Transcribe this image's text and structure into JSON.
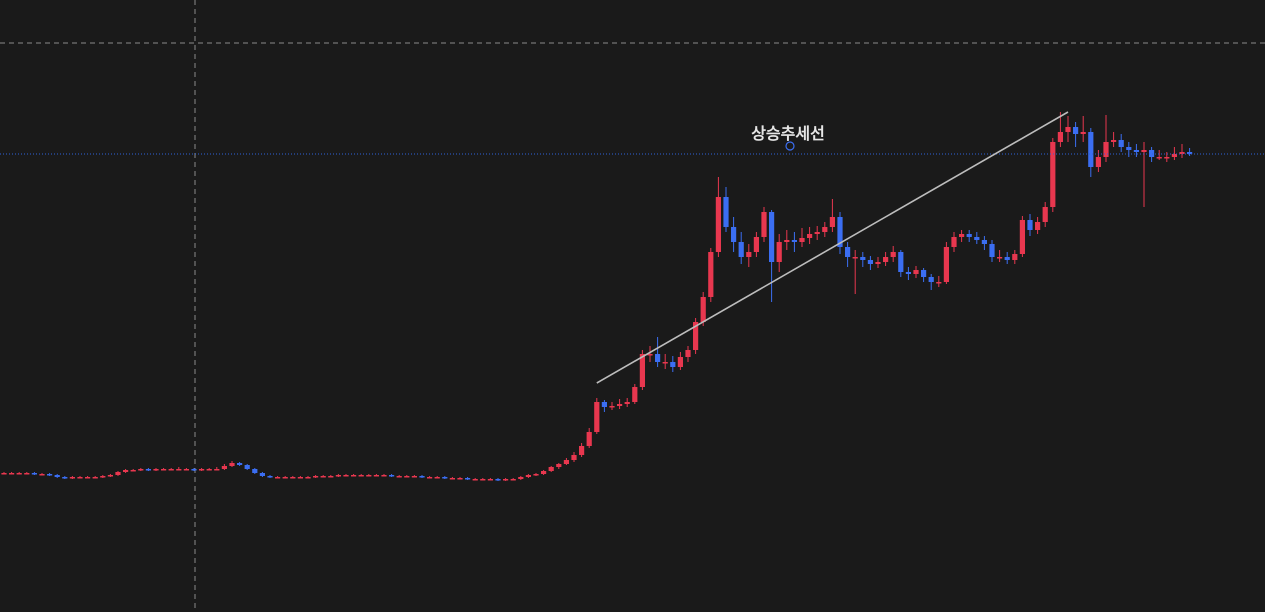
{
  "chart_data": {
    "type": "candlestick",
    "up_color": "#e8374f",
    "down_color": "#3b6ef2",
    "ylim": [
      0,
      612
    ],
    "ohlc": [
      [
        139,
        140,
        138,
        139
      ],
      [
        139,
        140,
        138,
        139
      ],
      [
        139,
        140,
        138,
        139
      ],
      [
        139,
        140,
        138,
        139
      ],
      [
        139,
        140,
        137,
        138
      ],
      [
        138,
        139,
        137,
        138
      ],
      [
        138,
        139,
        136,
        137
      ],
      [
        137,
        138,
        134,
        135
      ],
      [
        135,
        136,
        133,
        134
      ],
      [
        134,
        136,
        133,
        135
      ],
      [
        135,
        136,
        134,
        135
      ],
      [
        135,
        136,
        134,
        135
      ],
      [
        135,
        136,
        134,
        135
      ],
      [
        135,
        137,
        134,
        136
      ],
      [
        136,
        138,
        135,
        137
      ],
      [
        137,
        141,
        136,
        140
      ],
      [
        140,
        143,
        139,
        142
      ],
      [
        142,
        143,
        141,
        142
      ],
      [
        142,
        144,
        141,
        143
      ],
      [
        143,
        144,
        141,
        142
      ],
      [
        142,
        144,
        141,
        143
      ],
      [
        143,
        144,
        142,
        143
      ],
      [
        143,
        144,
        142,
        143
      ],
      [
        143,
        145,
        142,
        143
      ],
      [
        143,
        144,
        142,
        143
      ],
      [
        143,
        144,
        141,
        142
      ],
      [
        142,
        144,
        141,
        143
      ],
      [
        143,
        144,
        142,
        143
      ],
      [
        143,
        145,
        142,
        143
      ],
      [
        143,
        148,
        142,
        146
      ],
      [
        146,
        151,
        145,
        149
      ],
      [
        149,
        150,
        146,
        147
      ],
      [
        147,
        148,
        142,
        143
      ],
      [
        143,
        144,
        138,
        139
      ],
      [
        139,
        140,
        135,
        136
      ],
      [
        136,
        137,
        134,
        135
      ],
      [
        135,
        136,
        134,
        135
      ],
      [
        135,
        136,
        134,
        135
      ],
      [
        135,
        136,
        134,
        135
      ],
      [
        135,
        136,
        134,
        135
      ],
      [
        135,
        136,
        134,
        135
      ],
      [
        135,
        137,
        134,
        136
      ],
      [
        136,
        137,
        135,
        136
      ],
      [
        136,
        137,
        135,
        136
      ],
      [
        136,
        138,
        135,
        137
      ],
      [
        137,
        138,
        136,
        137
      ],
      [
        137,
        138,
        136,
        137
      ],
      [
        137,
        138,
        136,
        137
      ],
      [
        137,
        138,
        136,
        137
      ],
      [
        137,
        138,
        136,
        137
      ],
      [
        137,
        138,
        136,
        137
      ],
      [
        137,
        138,
        135,
        136
      ],
      [
        136,
        137,
        135,
        136
      ],
      [
        136,
        137,
        135,
        136
      ],
      [
        136,
        137,
        135,
        136
      ],
      [
        136,
        137,
        134,
        135
      ],
      [
        135,
        136,
        134,
        135
      ],
      [
        135,
        136,
        134,
        135
      ],
      [
        135,
        136,
        133,
        134
      ],
      [
        134,
        135,
        133,
        134
      ],
      [
        134,
        135,
        133,
        134
      ],
      [
        134,
        135,
        132,
        133
      ],
      [
        133,
        134,
        132,
        133
      ],
      [
        133,
        134,
        132,
        133
      ],
      [
        133,
        134,
        132,
        133
      ],
      [
        133,
        134,
        131,
        132
      ],
      [
        132,
        134,
        131,
        133
      ],
      [
        133,
        134,
        132,
        133
      ],
      [
        133,
        136,
        132,
        135
      ],
      [
        135,
        138,
        134,
        137
      ],
      [
        137,
        139,
        136,
        138
      ],
      [
        138,
        142,
        137,
        141
      ],
      [
        141,
        146,
        140,
        145
      ],
      [
        145,
        149,
        143,
        148
      ],
      [
        148,
        154,
        147,
        152
      ],
      [
        152,
        160,
        150,
        157
      ],
      [
        157,
        169,
        155,
        166
      ],
      [
        166,
        184,
        164,
        180
      ],
      [
        180,
        214,
        178,
        210
      ],
      [
        210,
        212,
        200,
        205
      ],
      [
        205,
        210,
        202,
        206
      ],
      [
        206,
        213,
        203,
        208
      ],
      [
        208,
        214,
        205,
        210
      ],
      [
        210,
        228,
        208,
        225
      ],
      [
        225,
        262,
        222,
        258
      ],
      [
        258,
        266,
        250,
        258
      ],
      [
        258,
        275,
        245,
        250
      ],
      [
        250,
        258,
        243,
        250
      ],
      [
        250,
        256,
        240,
        245
      ],
      [
        245,
        260,
        242,
        255
      ],
      [
        255,
        266,
        250,
        262
      ],
      [
        262,
        294,
        258,
        290
      ],
      [
        290,
        320,
        286,
        315
      ],
      [
        315,
        364,
        310,
        360
      ],
      [
        360,
        435,
        355,
        415
      ],
      [
        415,
        425,
        380,
        385
      ],
      [
        385,
        395,
        360,
        370
      ],
      [
        370,
        380,
        348,
        355
      ],
      [
        355,
        368,
        345,
        360
      ],
      [
        360,
        380,
        355,
        375
      ],
      [
        375,
        405,
        370,
        400
      ],
      [
        400,
        402,
        310,
        350
      ],
      [
        350,
        378,
        340,
        370
      ],
      [
        370,
        382,
        362,
        372
      ],
      [
        372,
        380,
        360,
        370
      ],
      [
        370,
        384,
        365,
        374
      ],
      [
        374,
        385,
        368,
        378
      ],
      [
        378,
        386,
        372,
        380
      ],
      [
        380,
        390,
        375,
        385
      ],
      [
        385,
        413,
        380,
        395
      ],
      [
        395,
        400,
        358,
        365
      ],
      [
        365,
        370,
        345,
        355
      ],
      [
        355,
        362,
        318,
        355
      ],
      [
        355,
        360,
        345,
        352
      ],
      [
        352,
        356,
        342,
        348
      ],
      [
        348,
        355,
        344,
        350
      ],
      [
        350,
        360,
        346,
        355
      ],
      [
        355,
        366,
        350,
        360
      ],
      [
        360,
        362,
        335,
        340
      ],
      [
        340,
        345,
        332,
        338
      ],
      [
        338,
        346,
        334,
        342
      ],
      [
        342,
        344,
        330,
        335
      ],
      [
        335,
        338,
        322,
        330
      ],
      [
        330,
        336,
        325,
        330
      ],
      [
        330,
        370,
        328,
        365
      ],
      [
        365,
        380,
        360,
        375
      ],
      [
        375,
        382,
        370,
        378
      ],
      [
        378,
        382,
        370,
        375
      ],
      [
        375,
        380,
        368,
        372
      ],
      [
        372,
        376,
        362,
        368
      ],
      [
        368,
        372,
        350,
        355
      ],
      [
        355,
        362,
        350,
        355
      ],
      [
        355,
        360,
        348,
        352
      ],
      [
        352,
        362,
        348,
        358
      ],
      [
        358,
        396,
        355,
        392
      ],
      [
        392,
        398,
        376,
        382
      ],
      [
        382,
        395,
        378,
        390
      ],
      [
        390,
        410,
        385,
        405
      ],
      [
        405,
        474,
        400,
        470
      ],
      [
        470,
        500,
        465,
        480
      ],
      [
        480,
        496,
        470,
        485
      ],
      [
        485,
        490,
        465,
        478
      ],
      [
        478,
        496,
        470,
        480
      ],
      [
        480,
        484,
        435,
        445
      ],
      [
        445,
        462,
        440,
        455
      ],
      [
        455,
        497,
        450,
        470
      ],
      [
        470,
        480,
        465,
        472
      ],
      [
        472,
        478,
        460,
        465
      ],
      [
        465,
        470,
        455,
        462
      ],
      [
        462,
        468,
        455,
        460
      ],
      [
        460,
        470,
        405,
        462
      ],
      [
        462,
        465,
        450,
        455
      ],
      [
        455,
        462,
        452,
        455
      ],
      [
        455,
        460,
        450,
        455
      ],
      [
        455,
        465,
        452,
        458
      ],
      [
        458,
        468,
        454,
        460
      ],
      [
        460,
        464,
        456,
        458
      ]
    ],
    "trendline": {
      "label": "상승추세선",
      "x": [
        78,
        140
      ],
      "y": [
        229,
        500
      ]
    }
  }
}
